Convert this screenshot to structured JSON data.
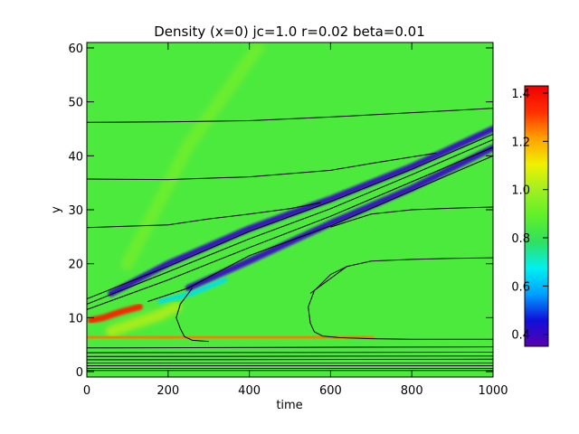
{
  "chart_data": {
    "type": "heatmap",
    "title": "Density (x=0) jc=1.0 r=0.02 beta=0.01",
    "xlabel": "time",
    "ylabel": "y",
    "xlim": [
      0,
      1000
    ],
    "ylim": [
      -1,
      61
    ],
    "x_ticks": [
      0,
      200,
      400,
      600,
      800,
      1000
    ],
    "y_ticks": [
      0,
      10,
      20,
      30,
      40,
      50,
      60
    ],
    "colorbar": {
      "range": [
        0.35,
        1.43
      ],
      "ticks": [
        0.4,
        0.6,
        0.8,
        1.0,
        1.2,
        1.4
      ],
      "tick_labels": [
        "0.4",
        "0.6",
        "0.8",
        "1.0",
        "1.2",
        "1.4"
      ],
      "colormap": [
        "#5a00b0",
        "#1010d8",
        "#00a0ff",
        "#00f0f0",
        "#30e060",
        "#5ef02a",
        "#a0f020",
        "#f0f000",
        "#ffa000",
        "#ff3000",
        "#ee0000"
      ]
    },
    "background_value": 0.85,
    "features": [
      {
        "name": "upper-low-density-band",
        "value": 0.4,
        "x": [
          60,
          200,
          400,
          600,
          800,
          1000
        ],
        "y": [
          14.5,
          20,
          26.5,
          32,
          38,
          45
        ]
      },
      {
        "name": "lower-low-density-band",
        "value": 0.4,
        "x": [
          250,
          400,
          600,
          800,
          1000
        ],
        "y": [
          15.5,
          20.5,
          27.5,
          34,
          41.5
        ]
      },
      {
        "name": "cyan-front",
        "value": 0.65,
        "x": [
          180,
          260,
          340
        ],
        "y": [
          13,
          14.5,
          17
        ]
      },
      {
        "name": "high-density-band",
        "value": 1.25,
        "x": [
          0,
          100,
          200,
          400,
          600,
          700
        ],
        "y": [
          6.5,
          6.5,
          6.3,
          6.2,
          6.2,
          6.2
        ]
      },
      {
        "name": "compression-tip",
        "value": 1.35,
        "x": [
          10,
          40,
          80,
          130
        ],
        "y": [
          9.5,
          10,
          11,
          12
        ]
      },
      {
        "name": "yellow-wedge",
        "value": 1.1,
        "x": [
          60,
          120,
          180,
          220
        ],
        "y": [
          7.5,
          9,
          10.5,
          12
        ]
      },
      {
        "name": "rarefaction-streak",
        "value": 0.95,
        "x": [
          100,
          250,
          420
        ],
        "y": [
          20,
          42,
          60
        ]
      }
    ],
    "contours": [
      {
        "x": [
          0,
          200,
          400,
          600,
          800,
          1000
        ],
        "y": [
          46.2,
          46.3,
          46.5,
          47.2,
          48,
          48.8
        ]
      },
      {
        "x": [
          0,
          200,
          400,
          600,
          700,
          860
        ],
        "y": [
          35.7,
          35.6,
          36.1,
          37.3,
          38.6,
          40.5
        ]
      },
      {
        "x": [
          0,
          200,
          300,
          400,
          500,
          575
        ],
        "y": [
          26.7,
          27.2,
          28.3,
          29.2,
          30.2,
          31.3
        ]
      },
      {
        "x": [
          0,
          200,
          400,
          600,
          800,
          1000
        ],
        "y": [
          13.5,
          19.5,
          26,
          31.5,
          37.5,
          44
        ]
      },
      {
        "x": [
          0,
          200,
          400,
          600,
          800,
          1000
        ],
        "y": [
          12.5,
          18.5,
          24.6,
          30.2,
          36.5,
          43
        ]
      },
      {
        "x": [
          0,
          200,
          400,
          600,
          800,
          1000
        ],
        "y": [
          11.5,
          17,
          23,
          28.8,
          35.2,
          41.6
        ]
      },
      {
        "x": [
          150,
          250,
          400,
          600,
          800,
          1000
        ],
        "y": [
          13,
          15.5,
          21.5,
          27,
          33.5,
          40
        ]
      },
      {
        "x": [
          600,
          700,
          800,
          900,
          1000
        ],
        "y": [
          26.8,
          29.2,
          30,
          30.3,
          30.5
        ]
      },
      {
        "x": [
          550,
          640,
          700,
          800,
          900,
          1000
        ],
        "y": [
          14.5,
          19.5,
          20.5,
          20.8,
          21,
          21.1
        ]
      },
      {
        "x": [
          640,
          600,
          560,
          545,
          550,
          560,
          580,
          620,
          660,
          700,
          800,
          1000
        ],
        "y": [
          19.5,
          18,
          15,
          12,
          9,
          7.4,
          6.6,
          6.3,
          6.2,
          6.1,
          6,
          6
        ]
      },
      {
        "x": [
          260,
          230,
          220,
          230,
          240,
          260,
          300
        ],
        "y": [
          15.5,
          12.5,
          10,
          8,
          6.5,
          5.8,
          5.6
        ]
      },
      {
        "x": [
          0,
          1000
        ],
        "y": [
          4.4,
          4.6
        ]
      },
      {
        "x": [
          0,
          1000
        ],
        "y": [
          3.5,
          3.6
        ]
      },
      {
        "x": [
          0,
          1000
        ],
        "y": [
          2.8,
          2.9
        ]
      },
      {
        "x": [
          0,
          1000
        ],
        "y": [
          2.2,
          2.3
        ]
      },
      {
        "x": [
          0,
          1000
        ],
        "y": [
          1.6,
          1.6
        ]
      },
      {
        "x": [
          0,
          1000
        ],
        "y": [
          1.1,
          1.1
        ]
      },
      {
        "x": [
          0,
          1000
        ],
        "y": [
          0.6,
          0.6
        ]
      },
      {
        "x": [
          0,
          1000
        ],
        "y": [
          0.2,
          0.2
        ]
      }
    ]
  }
}
